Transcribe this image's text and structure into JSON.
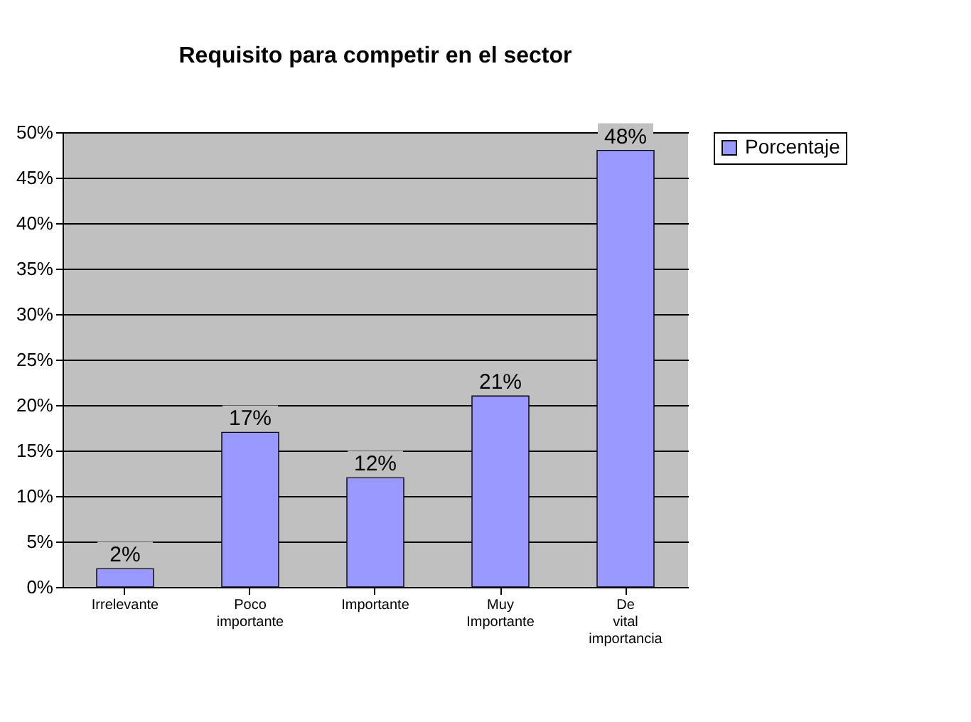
{
  "chart_data": {
    "type": "bar",
    "title": "Requisito para competir en el sector",
    "categories": [
      "Irrelevante",
      "Poco importante",
      "Importante",
      "Muy Importante",
      "De vital importancia"
    ],
    "series": [
      {
        "name": "Porcentaje",
        "color": "#9999ff",
        "values": [
          2,
          17,
          12,
          21,
          48
        ],
        "value_labels": [
          "2%",
          "17%",
          "12%",
          "21%",
          "48%"
        ]
      }
    ],
    "ylim": [
      0,
      50
    ],
    "yticks": [
      {
        "value": 0,
        "label": "0%"
      },
      {
        "value": 5,
        "label": "5%"
      },
      {
        "value": 10,
        "label": "10%"
      },
      {
        "value": 15,
        "label": "15%"
      },
      {
        "value": 20,
        "label": "20%"
      },
      {
        "value": 25,
        "label": "25%"
      },
      {
        "value": 30,
        "label": "30%"
      },
      {
        "value": 35,
        "label": "35%"
      },
      {
        "value": 40,
        "label": "40%"
      },
      {
        "value": 45,
        "label": "45%"
      },
      {
        "value": 50,
        "label": "50%"
      }
    ],
    "grid": "y",
    "legend": "right"
  }
}
